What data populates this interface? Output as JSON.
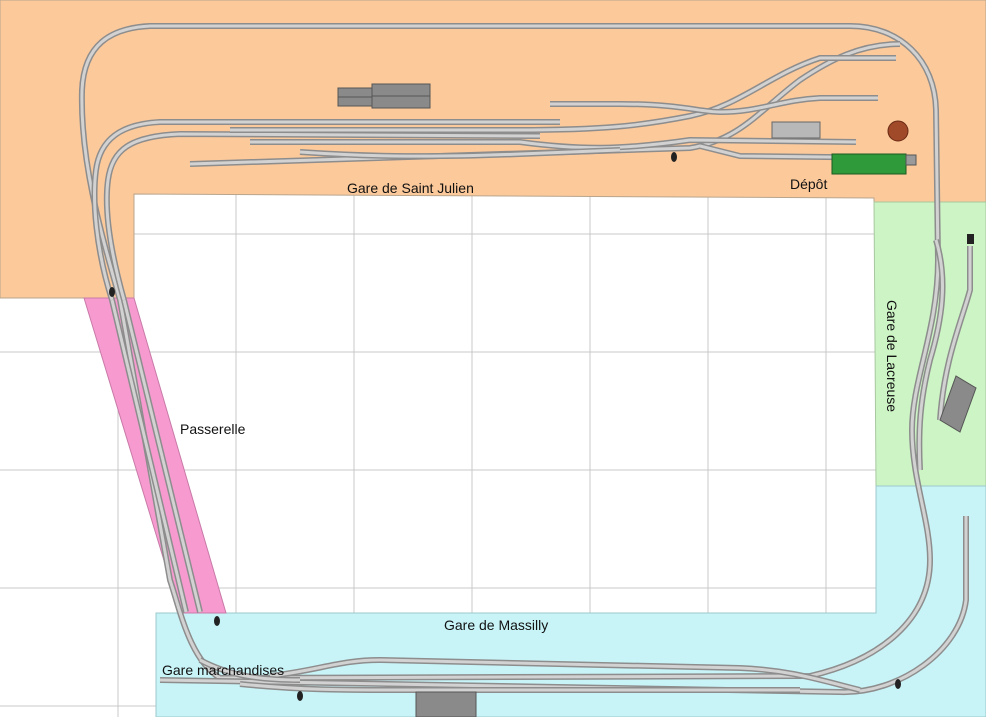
{
  "layout_plan": {
    "zones": {
      "saint_julien": {
        "label": "Gare de Saint Julien",
        "color": "#fcc99b"
      },
      "depot": {
        "label": "Dépôt",
        "color": "#fcc99b"
      },
      "passerelle": {
        "label": "Passerelle",
        "color": "#f79ad0"
      },
      "lacreuse": {
        "label": "Gare de Lacreuse",
        "color": "#ccf4c4"
      },
      "massilly": {
        "label": "Gare de Massilly",
        "color": "#c8f4f8"
      },
      "marchandises": {
        "label": "Gare marchandises",
        "color": "#c8f4f8"
      }
    },
    "colors": {
      "grid": "#c8c8c8",
      "track_rail": "#8d8d8d",
      "track_bed": "#d2d2d2",
      "building": "#8a8a8a",
      "turntable": "#a04a2a",
      "depot_shed": "#2f9a3a"
    }
  }
}
